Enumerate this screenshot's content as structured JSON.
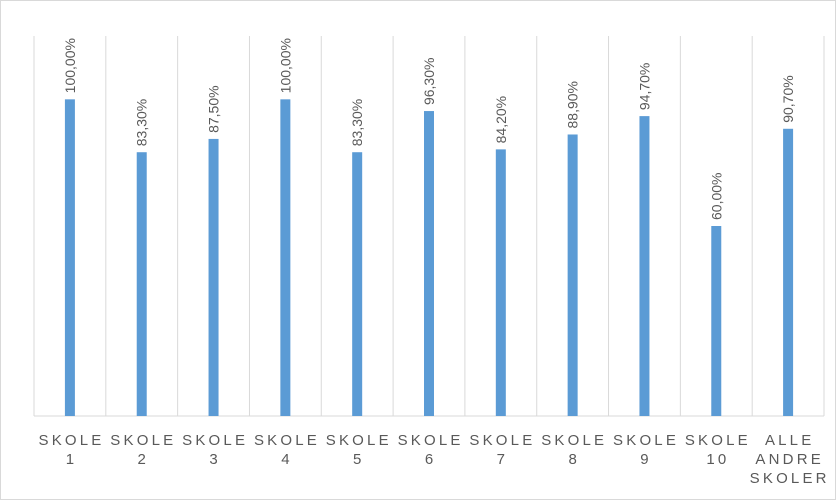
{
  "chart_data": {
    "type": "bar",
    "categories": [
      [
        "SKOLE",
        "1"
      ],
      [
        "SKOLE",
        "2"
      ],
      [
        "SKOLE",
        "3"
      ],
      [
        "SKOLE",
        "4"
      ],
      [
        "SKOLE",
        "5"
      ],
      [
        "SKOLE",
        "6"
      ],
      [
        "SKOLE",
        "7"
      ],
      [
        "SKOLE",
        "8"
      ],
      [
        "SKOLE",
        "9"
      ],
      [
        "SKOLE",
        "10"
      ],
      [
        "ALLE",
        "ANDRE",
        "SKOLER"
      ]
    ],
    "values": [
      100.0,
      83.3,
      87.5,
      100.0,
      83.3,
      96.3,
      84.2,
      88.9,
      94.7,
      60.0,
      90.7
    ],
    "data_labels": [
      "100,00%",
      "83,30%",
      "87,50%",
      "100,00%",
      "83,30%",
      "96,30%",
      "84,20%",
      "88,90%",
      "94,70%",
      "60,00%",
      "90,70%"
    ],
    "ylim": [
      0,
      120
    ],
    "grid": "vertical category separators",
    "legend": "none",
    "bar_color": "#5b9bd5",
    "gridline_color": "#d9d9d9",
    "label_color": "#595959"
  }
}
